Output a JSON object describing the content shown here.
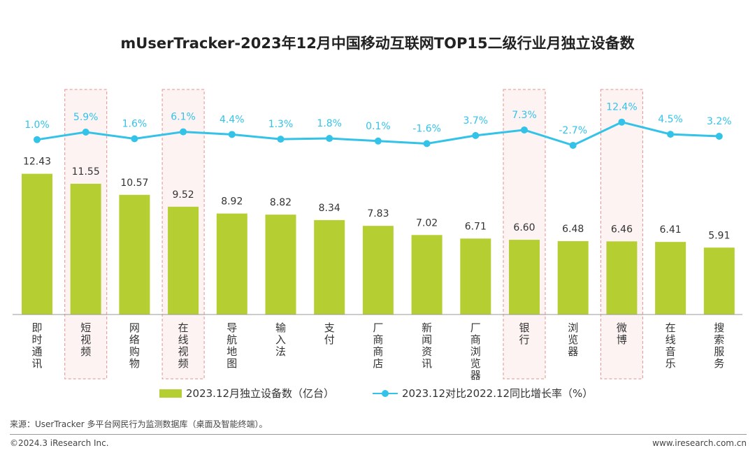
{
  "chart_data": {
    "type": "bar",
    "title": "mUserTracker-2023年12月中国移动互联网TOP15二级行业月独立设备数",
    "categories": [
      "即时通讯",
      "短视频",
      "网络购物",
      "在线视频",
      "导航地图",
      "输入法",
      "支付",
      "厂商商店",
      "新闻资讯",
      "厂商浏览器",
      "银行",
      "浏览器",
      "微博",
      "在线音乐",
      "搜索服务"
    ],
    "series": [
      {
        "name": "2023.12月独立设备数（亿台）",
        "type": "bar",
        "color": "#b5cf32",
        "values": [
          12.43,
          11.55,
          10.57,
          9.52,
          8.92,
          8.82,
          8.34,
          7.83,
          7.02,
          6.71,
          6.6,
          6.48,
          6.46,
          6.41,
          5.91
        ]
      },
      {
        "name": "2023.12对比2022.12同比增长率（%）",
        "type": "line",
        "color": "#33c3e8",
        "values": [
          1.0,
          5.9,
          1.6,
          6.1,
          4.4,
          1.3,
          1.8,
          0.1,
          -1.6,
          3.7,
          7.3,
          -2.7,
          12.4,
          4.5,
          3.2
        ],
        "labels": [
          "1.0%",
          "5.9%",
          "1.6%",
          "6.1%",
          "4.4%",
          "1.3%",
          "1.8%",
          "0.1%",
          "-1.6%",
          "3.7%",
          "7.3%",
          "-2.7%",
          "12.4%",
          "4.5%",
          "3.2%"
        ]
      }
    ],
    "bar_labels": [
      "12.43",
      "11.55",
      "10.57",
      "9.52",
      "8.92",
      "8.82",
      "8.34",
      "7.83",
      "7.02",
      "6.71",
      "6.60",
      "6.48",
      "6.46",
      "6.41",
      "5.91"
    ],
    "highlighted": [
      "短视频",
      "在线视频",
      "银行",
      "微博"
    ],
    "legend_position": "bottom",
    "grid": false
  },
  "legend": {
    "bar_label": "2023.12月独立设备数（亿台）",
    "line_label": "2023.12对比2022.12同比增长率（%）"
  },
  "footer": {
    "source": "来源：UserTracker 多平台网民行为监测数据库（桌面及智能终端）。",
    "copyright": "©2024.3 iResearch Inc.",
    "website": "www.iresearch.com.cn"
  }
}
